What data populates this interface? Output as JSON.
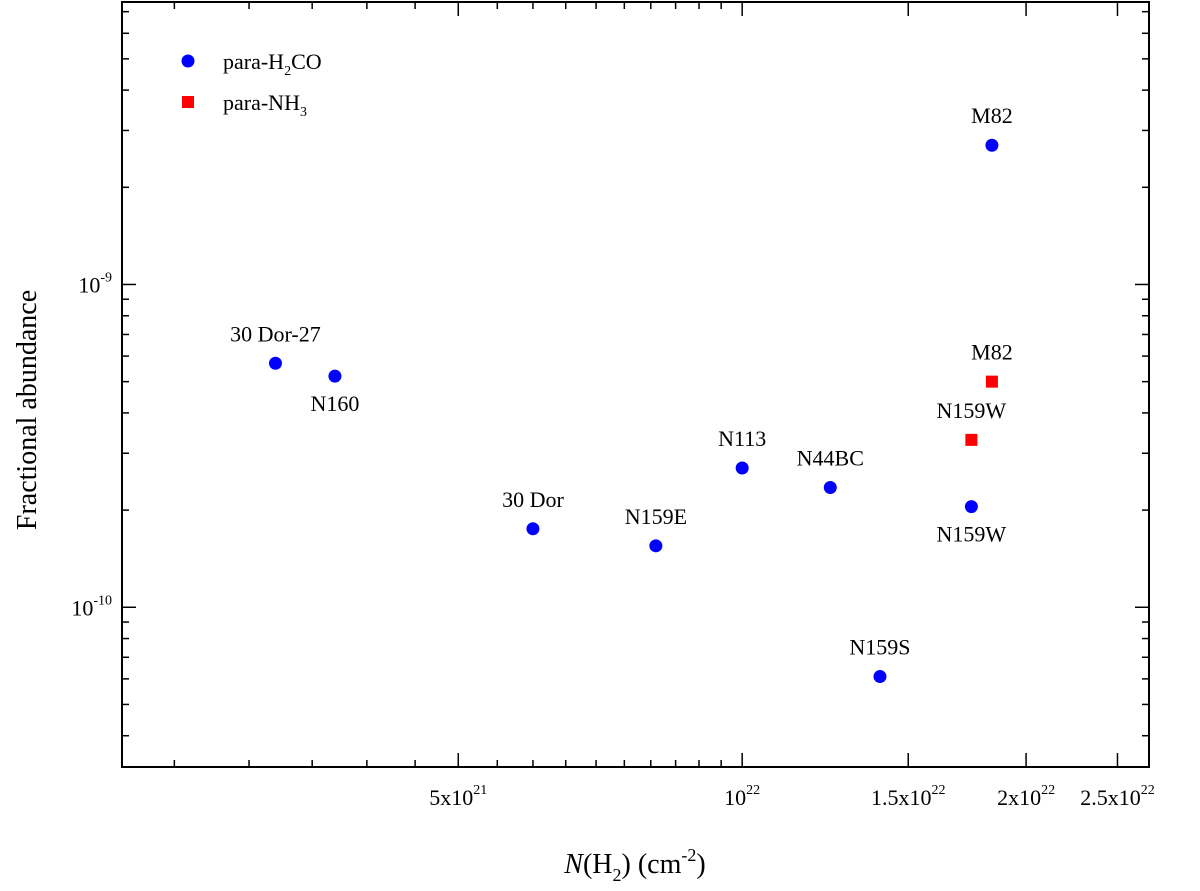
{
  "chart_data": {
    "type": "scatter",
    "xscale": "log",
    "yscale": "log",
    "xlim": [
      2.2e+21,
      2.7e+22
    ],
    "ylim": [
      3.2e-11,
      7.5e-09
    ],
    "xlabel": {
      "italic": "N",
      "mid": "(H",
      "sub": "2",
      "post": ") (cm",
      "sup": "-2",
      "end": ")"
    },
    "ylabel": "Fractional abundance",
    "x_ticks": [
      {
        "value": 5e+21,
        "base": "5x10",
        "exp": "21"
      },
      {
        "value": 1e+22,
        "base": "10",
        "exp": "22"
      },
      {
        "value": 1.5e+22,
        "base": "1.5x10",
        "exp": "22"
      },
      {
        "value": 2e+22,
        "base": "2x10",
        "exp": "22"
      },
      {
        "value": 2.5e+22,
        "base": "2.5x10",
        "exp": "22"
      }
    ],
    "y_ticks": [
      {
        "value": 1e-10,
        "base": "10",
        "exp": "-10"
      },
      {
        "value": 1e-09,
        "base": "10",
        "exp": "-9"
      }
    ],
    "legend": {
      "position": "top-left",
      "items": [
        {
          "prefix": "para-H",
          "sub": "2",
          "suffix": "CO",
          "marker": "circle",
          "color": "#0000ff"
        },
        {
          "prefix": "para-NH",
          "sub": "3",
          "suffix": "",
          "marker": "square",
          "color": "#ff0000"
        }
      ]
    },
    "series": [
      {
        "name": "para-H2CO",
        "marker": "circle",
        "color": "#0000ff",
        "points": [
          {
            "label": "30 Dor-27",
            "x": 3.2e+21,
            "y": 5.7e-10,
            "label_pos": "above"
          },
          {
            "label": "N160",
            "x": 3.7e+21,
            "y": 5.2e-10,
            "label_pos": "below"
          },
          {
            "label": "30 Dor",
            "x": 6e+21,
            "y": 1.75e-10,
            "label_pos": "above"
          },
          {
            "label": "N159E",
            "x": 8.1e+21,
            "y": 1.55e-10,
            "label_pos": "above"
          },
          {
            "label": "N113",
            "x": 1e+22,
            "y": 2.7e-10,
            "label_pos": "above"
          },
          {
            "label": "N44BC",
            "x": 1.24e+22,
            "y": 2.35e-10,
            "label_pos": "above"
          },
          {
            "label": "N159S",
            "x": 1.4e+22,
            "y": 6.1e-11,
            "label_pos": "above"
          },
          {
            "label": "N159W",
            "x": 1.75e+22,
            "y": 2.05e-10,
            "label_pos": "below"
          },
          {
            "label": "M82",
            "x": 1.84e+22,
            "y": 2.7e-09,
            "label_pos": "above"
          }
        ]
      },
      {
        "name": "para-NH3",
        "marker": "square",
        "color": "#ff0000",
        "points": [
          {
            "label": "N159W",
            "x": 1.75e+22,
            "y": 3.3e-10,
            "label_pos": "above"
          },
          {
            "label": "M82",
            "x": 1.84e+22,
            "y": 5e-10,
            "label_pos": "above"
          }
        ]
      }
    ]
  }
}
